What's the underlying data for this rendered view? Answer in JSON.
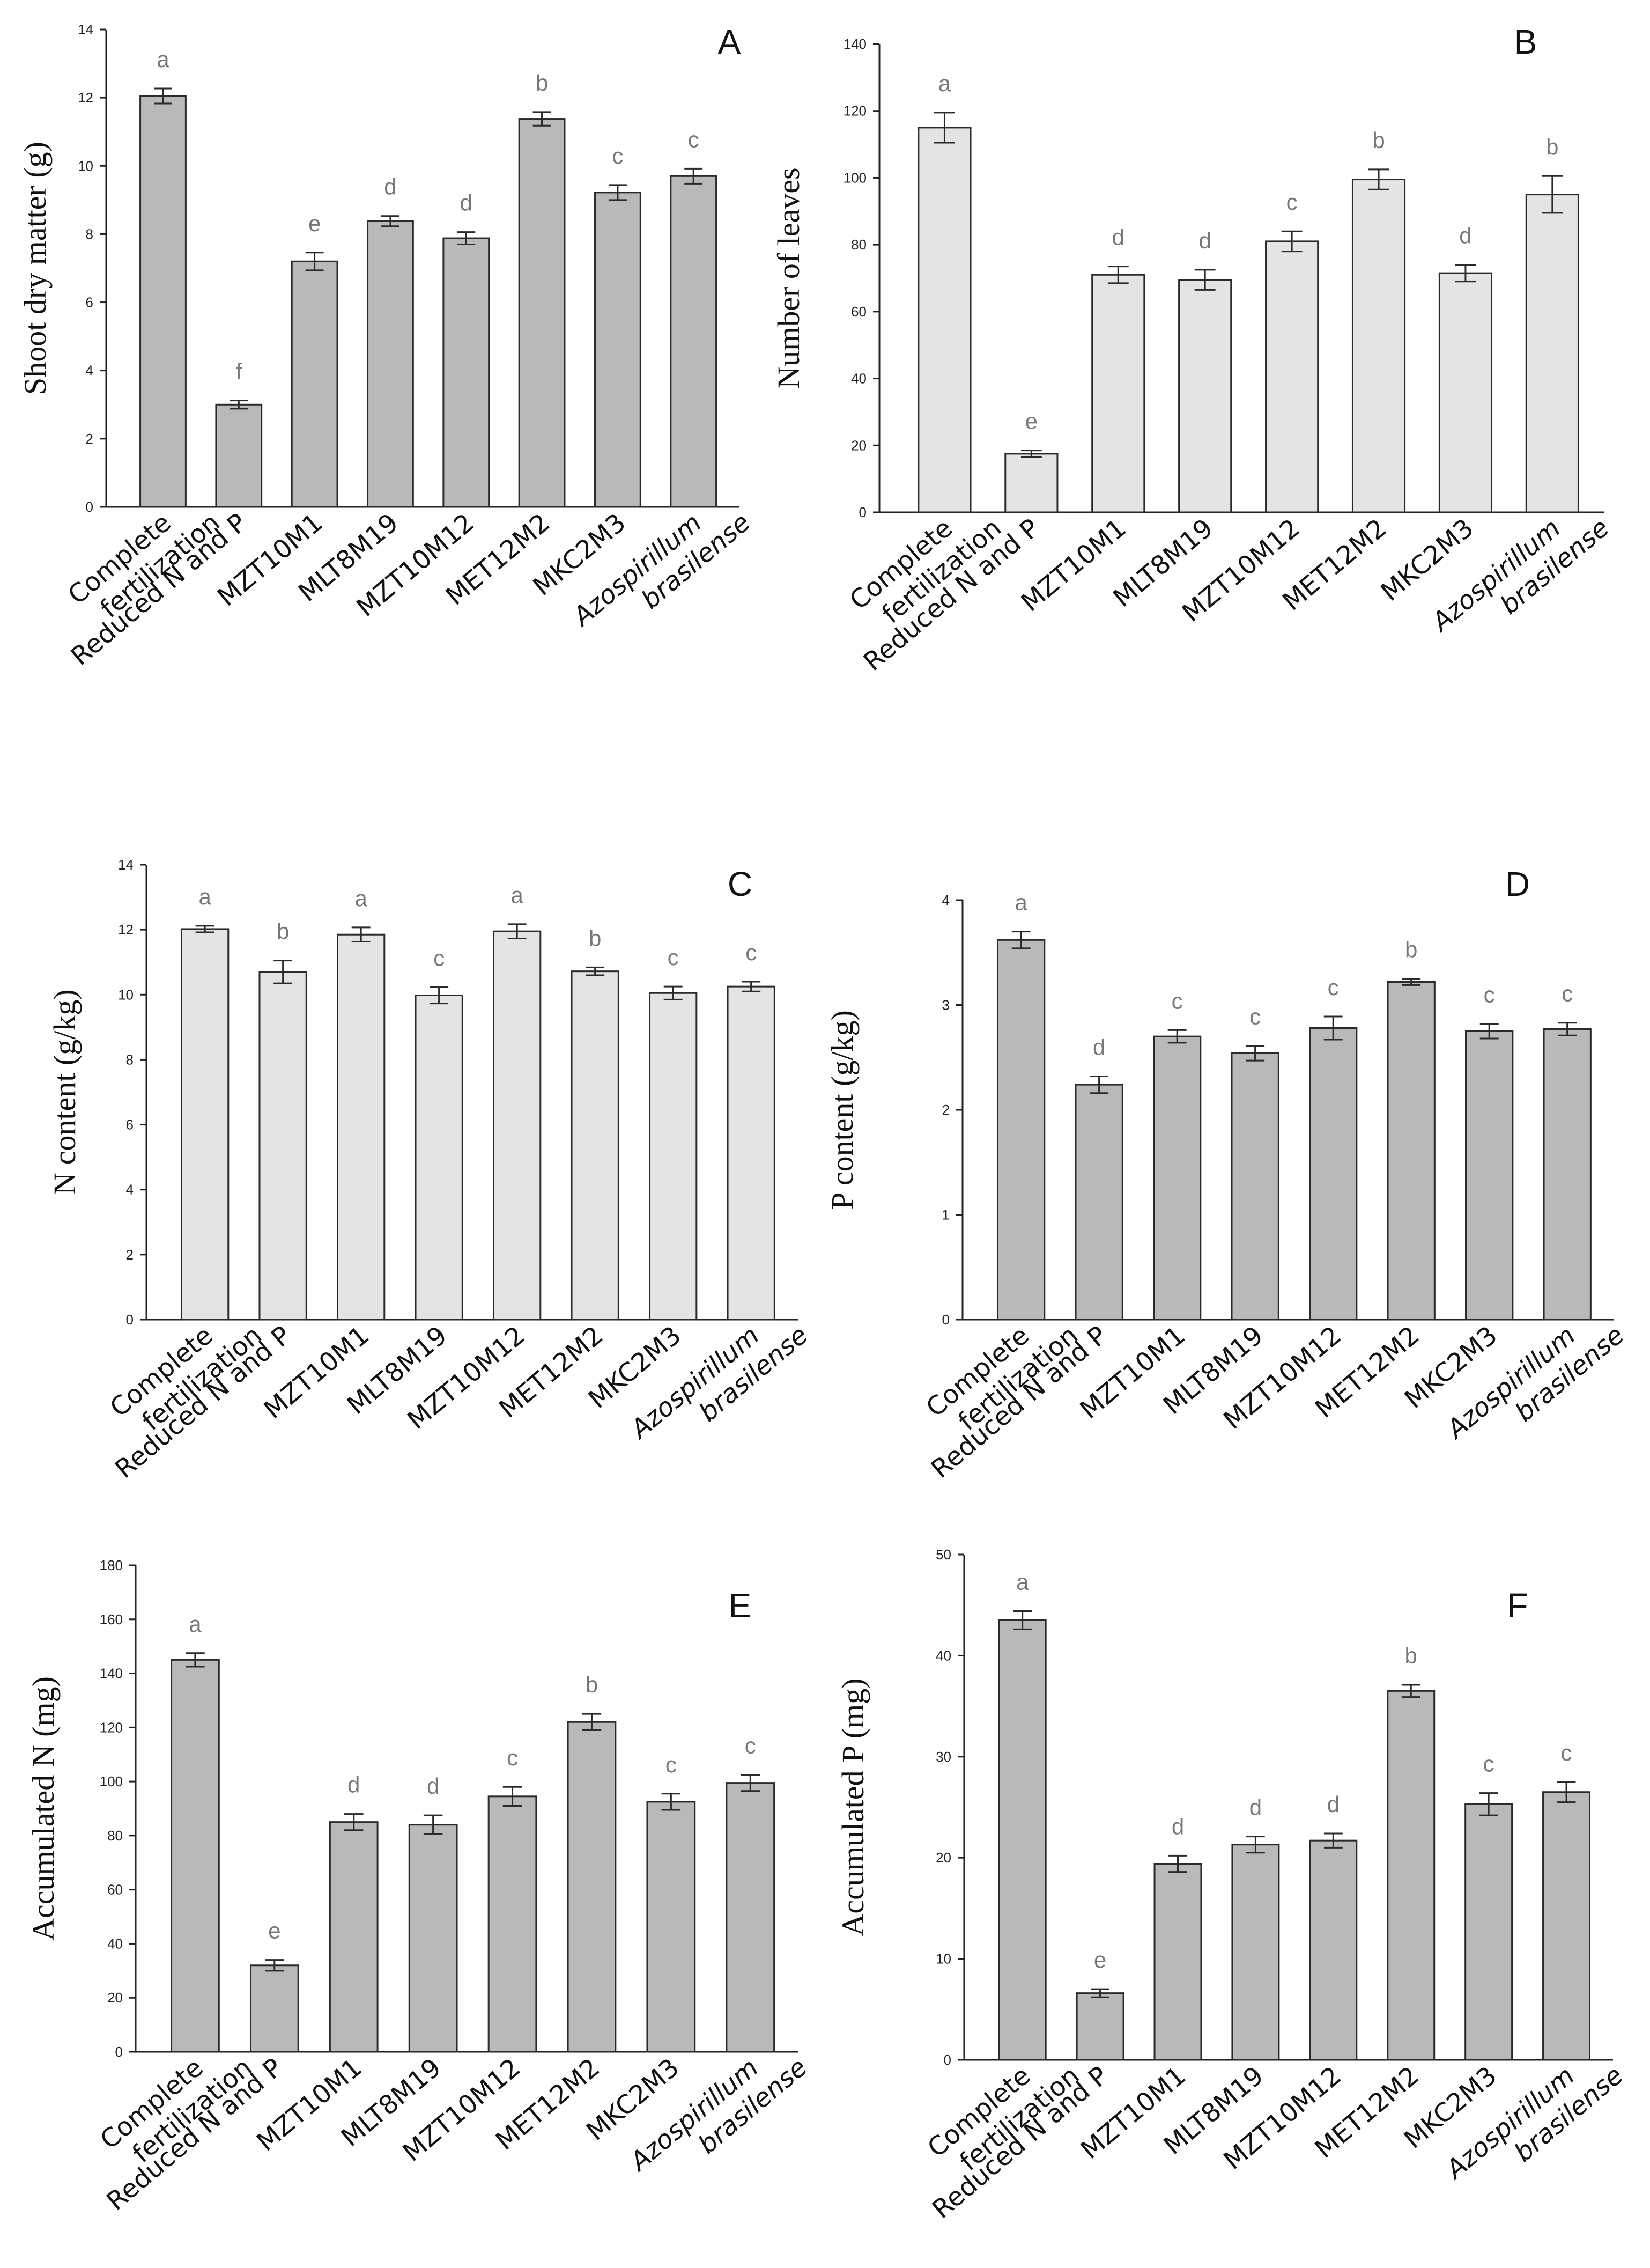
{
  "categories": [
    [
      "Complete",
      "fertilization"
    ],
    [
      "Reduced N and P"
    ],
    [
      "MZT10M1"
    ],
    [
      "MLT8M19"
    ],
    [
      "MZT10M12"
    ],
    [
      "MET12M2"
    ],
    [
      "MKC2M3"
    ],
    [
      "Azospirillum",
      "brasilense"
    ]
  ],
  "italic_categories": [
    7
  ],
  "colors": {
    "dark_bar": "#b9b9b9",
    "light_bar": "#e4e4e4",
    "bar_edge": "#2a2a2a",
    "axis": "#222222",
    "significance_text": "#777777"
  },
  "chart_data": [
    {
      "panel": "A",
      "type": "bar",
      "bar_color": "dark",
      "ylabel": "Shoot dry matter (g)",
      "ylim": [
        0,
        14
      ],
      "yticks": [
        0,
        2,
        4,
        6,
        8,
        10,
        12,
        14
      ],
      "values": [
        12.05,
        3.0,
        7.2,
        8.38,
        7.88,
        11.38,
        9.22,
        9.7
      ],
      "errors": [
        0.22,
        0.12,
        0.26,
        0.15,
        0.18,
        0.2,
        0.22,
        0.22
      ],
      "letters": [
        "a",
        "f",
        "e",
        "d",
        "d",
        "b",
        "c",
        "c"
      ]
    },
    {
      "panel": "B",
      "type": "bar",
      "bar_color": "light",
      "ylabel": "Number of leaves",
      "ylim": [
        0,
        140
      ],
      "yticks": [
        0,
        20,
        40,
        60,
        80,
        100,
        120,
        140
      ],
      "values": [
        115,
        17.5,
        71,
        69.5,
        81,
        99.5,
        71.5,
        95
      ],
      "errors": [
        4.5,
        1.0,
        2.5,
        3.0,
        3.0,
        3.0,
        2.5,
        5.5
      ],
      "letters": [
        "a",
        "e",
        "d",
        "d",
        "c",
        "b",
        "d",
        "b"
      ]
    },
    {
      "panel": "C",
      "type": "bar",
      "bar_color": "light",
      "ylabel": "N content (g/kg)",
      "ylim": [
        0,
        14
      ],
      "yticks": [
        0,
        2,
        4,
        6,
        8,
        10,
        12,
        14
      ],
      "values": [
        12.02,
        10.7,
        11.85,
        9.98,
        11.95,
        10.72,
        10.05,
        10.25
      ],
      "errors": [
        0.1,
        0.35,
        0.22,
        0.25,
        0.22,
        0.12,
        0.2,
        0.15
      ],
      "letters": [
        "a",
        "b",
        "a",
        "c",
        "a",
        "b",
        "c",
        "c"
      ]
    },
    {
      "panel": "D",
      "type": "bar",
      "bar_color": "dark",
      "ylabel": "P content (g/kg)",
      "ylim": [
        0,
        4
      ],
      "yticks": [
        0,
        1,
        2,
        3,
        4
      ],
      "values": [
        3.62,
        2.24,
        2.7,
        2.54,
        2.78,
        3.22,
        2.75,
        2.77
      ],
      "errors": [
        0.08,
        0.08,
        0.06,
        0.07,
        0.11,
        0.03,
        0.07,
        0.06
      ],
      "letters": [
        "a",
        "d",
        "c",
        "c",
        "c",
        "b",
        "c",
        "c"
      ]
    },
    {
      "panel": "E",
      "type": "bar",
      "bar_color": "dark",
      "ylabel": "Accumulated N (mg)",
      "ylim": [
        0,
        180
      ],
      "yticks": [
        0,
        20,
        40,
        60,
        80,
        100,
        120,
        140,
        160,
        180
      ],
      "values": [
        145,
        32,
        85,
        84,
        94.5,
        122,
        92.5,
        99.5
      ],
      "errors": [
        2.5,
        2.0,
        3.0,
        3.5,
        3.5,
        3.0,
        3.0,
        3.0
      ],
      "letters": [
        "a",
        "e",
        "d",
        "d",
        "c",
        "b",
        "c",
        "c"
      ]
    },
    {
      "panel": "F",
      "type": "bar",
      "bar_color": "dark",
      "ylabel": "Accumulated P (mg)",
      "ylim": [
        0,
        50
      ],
      "yticks": [
        0,
        10,
        20,
        30,
        40,
        50
      ],
      "values": [
        43.5,
        6.6,
        19.4,
        21.3,
        21.7,
        36.5,
        25.3,
        26.5
      ],
      "errors": [
        0.9,
        0.4,
        0.8,
        0.8,
        0.7,
        0.6,
        1.1,
        1.0
      ],
      "letters": [
        "a",
        "e",
        "d",
        "d",
        "d",
        "b",
        "c",
        "c"
      ]
    }
  ]
}
